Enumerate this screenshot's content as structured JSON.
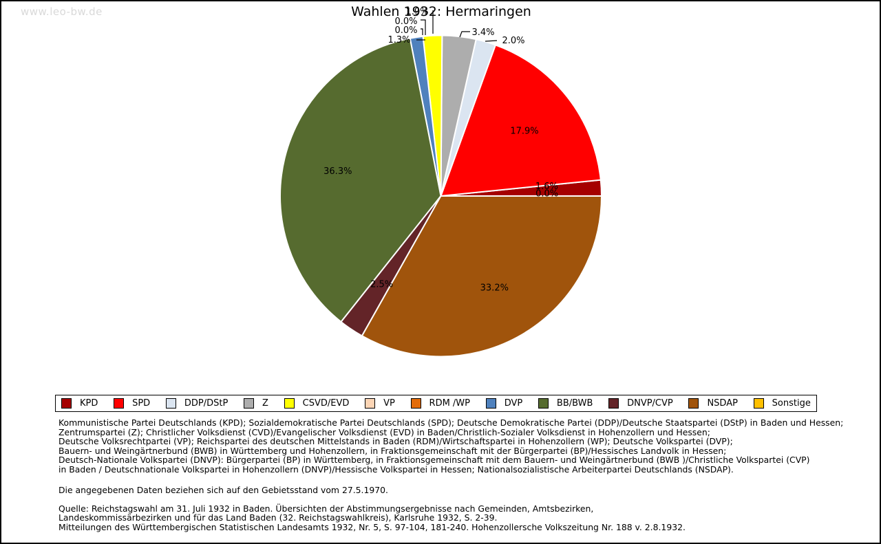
{
  "watermark": "www.leo-bw.de",
  "title": "Wahlen 1932: Hermaringen",
  "chart_data": {
    "type": "pie",
    "title": "Wahlen 1932: Hermaringen",
    "unit": "percent",
    "start_angle_deg": 0,
    "direction": "counterclockwise",
    "legend_position": "bottom",
    "series": [
      {
        "name": "KPD",
        "value": 1.6,
        "label": "1.6%",
        "color": "#a50000",
        "label_placement": "inside"
      },
      {
        "name": "SPD",
        "value": 17.9,
        "label": "17.9%",
        "color": "#ff0000",
        "label_placement": "inside"
      },
      {
        "name": "DDP/DStP",
        "value": 2.0,
        "label": "2.0%",
        "color": "#dbe5f1",
        "label_placement": "outside"
      },
      {
        "name": "Z",
        "value": 3.4,
        "label": "3.4%",
        "color": "#adadad",
        "label_placement": "outside"
      },
      {
        "name": "CSVD/EVD",
        "value": 1.9,
        "label": "1.9%",
        "color": "#ffff00",
        "label_placement": "outside"
      },
      {
        "name": "VP",
        "value": 0.0,
        "label": "0.0%",
        "color": "#fcd5b5",
        "label_placement": "outside"
      },
      {
        "name": "RDM /WP",
        "value": 0.0,
        "label": "0.0%",
        "color": "#e36c0a",
        "label_placement": "outside"
      },
      {
        "name": "DVP",
        "value": 1.3,
        "label": "1.3%",
        "color": "#4f81bd",
        "label_placement": "outside"
      },
      {
        "name": "BB/BWB",
        "value": 36.3,
        "label": "36.3%",
        "color": "#566b2f",
        "label_placement": "inside"
      },
      {
        "name": "DNVP/CVP",
        "value": 2.5,
        "label": "2.5%",
        "color": "#632428",
        "label_placement": "inside"
      },
      {
        "name": "NSDAP",
        "value": 33.2,
        "label": "33.2%",
        "color": "#a0540c",
        "label_placement": "inside"
      },
      {
        "name": "Sonstige",
        "value": 0.0,
        "label": "0.0%",
        "color": "#ffc000",
        "label_placement": "inside"
      }
    ]
  },
  "notes": {
    "lines": [
      "Kommunistische Partei Deutschlands (KPD); Sozialdemokratische Partei Deutschlands (SPD); Deutsche Demokratische Partei (DDP)/Deutsche Staatspartei (DStP) in Baden und Hessen;",
      "Zentrumspartei (Z); Christlicher Volksdienst (CVD)/Evangelischer Volksdienst (EVD) in Baden/Christlich-Sozialer Volksdienst in Hohenzollern und Hessen;",
      "Deutsche Volksrechtpartei (VP); Reichspartei des deutschen Mittelstands in Baden (RDM)/Wirtschaftspartei in Hohenzollern (WP); Deutsche Volkspartei (DVP);",
      "Bauern- und Weingärtnerbund (BWB) in Württemberg und Hohenzollern, in Fraktionsgemeinschaft mit der Bürgerpartei (BP)/Hessisches Landvolk in Hessen;",
      "Deutsch-Nationale Volkspartei (DNVP): Bürgerpartei (BP) in Württemberg, in Fraktionsgemeinschaft mit dem Bauern- und Weingärtnerbund (BWB )/Christliche Volkspartei (CVP)",
      "in Baden / Deutschnationale Volkspartei in Hohenzollern (DNVP)/Hessische Volkspartei in Hessen; Nationalsozialistische Arbeiterpartei Deutschlands (NSDAP)."
    ]
  },
  "gebietsstand": "Die angegebenen Daten beziehen sich auf den Gebietsstand vom 27.5.1970.",
  "quelle": {
    "lines": [
      "Quelle: Reichstagswahl am 31. Juli 1932 in Baden. Übersichten der Abstimmungsergebnisse nach Gemeinden, Amtsbezirken,",
      "Landeskommissärbezirken und für das Land Baden (32. Reichstagswahlkreis), Karlsruhe 1932, S. 2-39.",
      "Mitteilungen des Württembergischen Statistischen Landesamts 1932, Nr. 5, S. 97-104, 181-240. Hohenzollersche Volkszeitung Nr. 188 v. 2.8.1932."
    ]
  }
}
